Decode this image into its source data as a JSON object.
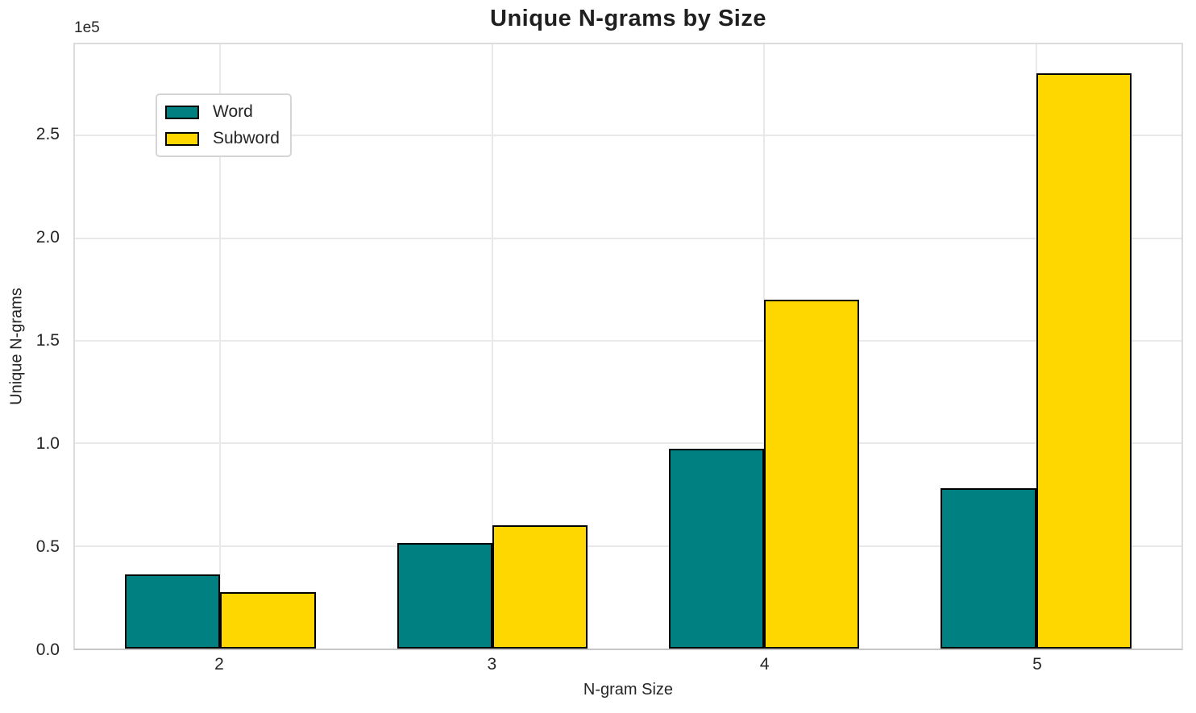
{
  "chart_data": {
    "type": "bar",
    "title": "Unique N-grams by Size",
    "xlabel": "N-gram Size",
    "ylabel": "Unique N-grams",
    "y_offset_text": "1e5",
    "categories": [
      "2",
      "3",
      "4",
      "5"
    ],
    "x_values": [
      2,
      3,
      4,
      5
    ],
    "series": [
      {
        "name": "Word",
        "color": "#008080",
        "values": [
          36000,
          51500,
          97500,
          78000
        ]
      },
      {
        "name": "Subword",
        "color": "#FFD700",
        "values": [
          27500,
          60000,
          170000,
          280500
        ]
      }
    ],
    "bar_width": 0.35,
    "bar_edge_color": "#000000",
    "xlim": [
      1.465,
      5.535
    ],
    "ylim": [
      0,
      294525
    ],
    "y_ticks": [
      {
        "value": 0,
        "label": "0.0"
      },
      {
        "value": 50000,
        "label": "0.5"
      },
      {
        "value": 100000,
        "label": "1.0"
      },
      {
        "value": 150000,
        "label": "1.5"
      },
      {
        "value": 200000,
        "label": "2.0"
      },
      {
        "value": 250000,
        "label": "2.5"
      }
    ],
    "grid": true,
    "legend_position": "upper left",
    "style": {
      "grid_color": "#e9e9e9",
      "spine_color": "#dcdcdc",
      "baseline_color": "#c6c6c6",
      "text_color": "#262626",
      "background": "#ffffff"
    }
  }
}
